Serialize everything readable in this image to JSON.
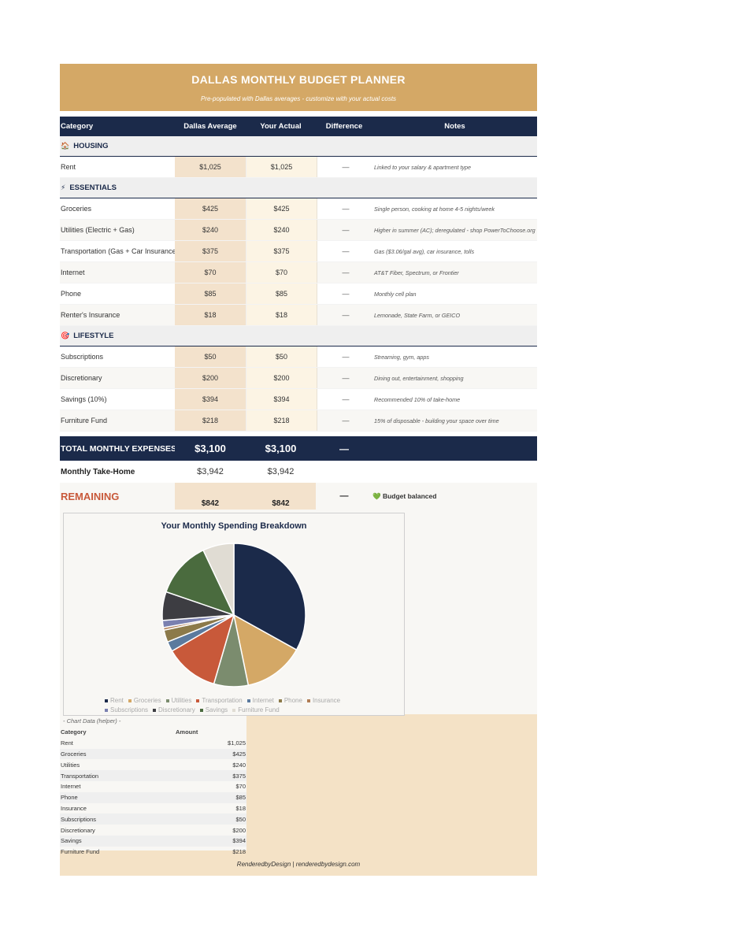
{
  "header": {
    "title": "DALLAS MONTHLY BUDGET PLANNER",
    "subtitle": "Pre-populated with Dallas averages - customize with your actual costs"
  },
  "columns": [
    "Category",
    "Dallas Average",
    "Your Actual",
    "Difference",
    "Notes"
  ],
  "sections": [
    {
      "icon": "house-icon",
      "glyph": "🏠",
      "name": "HOUSING",
      "rows": [
        {
          "category": "Rent",
          "avg": "$1,025",
          "actual": "$1,025",
          "diff": "—",
          "note": "Linked to your salary & apartment type"
        }
      ]
    },
    {
      "icon": "lightning-icon",
      "glyph": "⚡",
      "name": "ESSENTIALS",
      "rows": [
        {
          "category": "Groceries",
          "avg": "$425",
          "actual": "$425",
          "diff": "—",
          "note": "Single person, cooking at home 4-5 nights/week"
        },
        {
          "category": "Utilities (Electric + Gas)",
          "avg": "$240",
          "actual": "$240",
          "diff": "—",
          "note": "Higher in summer (AC); deregulated - shop PowerToChoose.org"
        },
        {
          "category": "Transportation (Gas + Car Insurance)",
          "avg": "$375",
          "actual": "$375",
          "diff": "—",
          "note": "Gas ($3.06/gal avg), car insurance, tolls"
        },
        {
          "category": "Internet",
          "avg": "$70",
          "actual": "$70",
          "diff": "—",
          "note": "AT&T Fiber, Spectrum, or Frontier"
        },
        {
          "category": "Phone",
          "avg": "$85",
          "actual": "$85",
          "diff": "—",
          "note": "Monthly cell plan"
        },
        {
          "category": "Renter's Insurance",
          "avg": "$18",
          "actual": "$18",
          "diff": "—",
          "note": "Lemonade, State Farm, or GEICO"
        }
      ]
    },
    {
      "icon": "target-icon",
      "glyph": "🎯",
      "name": "LIFESTYLE",
      "rows": [
        {
          "category": "Subscriptions",
          "avg": "$50",
          "actual": "$50",
          "diff": "—",
          "note": "Streaming, gym, apps"
        },
        {
          "category": "Discretionary",
          "avg": "$200",
          "actual": "$200",
          "diff": "—",
          "note": "Dining out, entertainment, shopping"
        },
        {
          "category": "Savings (10%)",
          "avg": "$394",
          "actual": "$394",
          "diff": "—",
          "note": "Recommended 10% of take-home"
        },
        {
          "category": "Furniture Fund",
          "avg": "$218",
          "actual": "$218",
          "diff": "—",
          "note": "15% of disposable - building your space over time"
        }
      ]
    }
  ],
  "totals": {
    "label": "TOTAL MONTHLY EXPENSES",
    "avg": "$3,100",
    "actual": "$3,100",
    "diff": "—"
  },
  "takehome": {
    "label": "Monthly Take-Home",
    "avg": "$3,942",
    "actual": "$3,942"
  },
  "remaining": {
    "label": "REMAINING",
    "avg": "$842",
    "actual": "$842",
    "diff": "—",
    "status_glyph": "💚",
    "status": "Budget balanced"
  },
  "helper": {
    "caption": "- Chart Data (helper) -",
    "head_category": "Category",
    "head_amount": "Amount",
    "rows": [
      {
        "k": "Rent",
        "v": "$1,025"
      },
      {
        "k": "Groceries",
        "v": "$425"
      },
      {
        "k": "Utilities",
        "v": "$240"
      },
      {
        "k": "Transportation",
        "v": "$375"
      },
      {
        "k": "Internet",
        "v": "$70"
      },
      {
        "k": "Phone",
        "v": "$85"
      },
      {
        "k": "Insurance",
        "v": "$18"
      },
      {
        "k": "Subscriptions",
        "v": "$50"
      },
      {
        "k": "Discretionary",
        "v": "$200"
      },
      {
        "k": "Savings",
        "v": "$394"
      },
      {
        "k": "Furniture Fund",
        "v": "$218"
      }
    ]
  },
  "footer": {
    "text": "RenderedbyDesign  |  renderedbydesign.com"
  },
  "chart_data": {
    "type": "pie",
    "title": "Your Monthly Spending Breakdown",
    "categories": [
      "Rent",
      "Groceries",
      "Utilities",
      "Transportation",
      "Internet",
      "Phone",
      "Insurance",
      "Subscriptions",
      "Discretionary",
      "Savings",
      "Furniture Fund"
    ],
    "values": [
      1025,
      425,
      240,
      375,
      70,
      85,
      18,
      50,
      200,
      394,
      218
    ],
    "colors": [
      "#1b2a4a",
      "#d4a866",
      "#7b8c6e",
      "#c8593a",
      "#5b7a9e",
      "#8c7a4a",
      "#b07d55",
      "#7a80b0",
      "#3d3d42",
      "#4a6b3e",
      "#e0dcd3"
    ],
    "legend": "bottom"
  }
}
